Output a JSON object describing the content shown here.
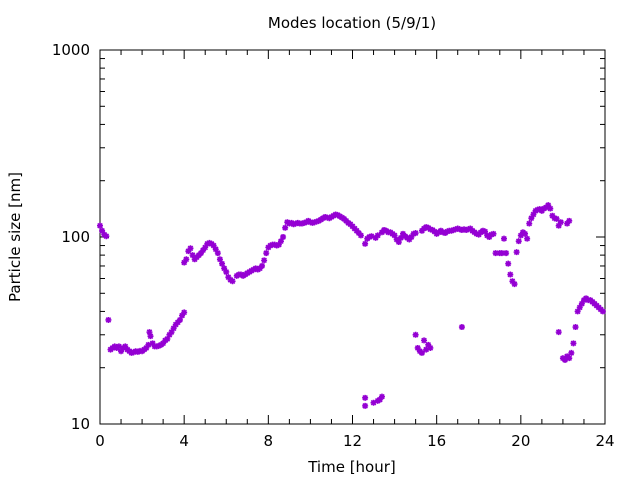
{
  "chart_data": {
    "type": "scatter",
    "title": "Modes location (5/9/1)",
    "xlabel": "Time [hour]",
    "ylabel": "Particle size [nm]",
    "xlim": [
      0,
      24
    ],
    "ylim": [
      10,
      1000
    ],
    "yscale": "log",
    "x_ticks": [
      0,
      4,
      8,
      12,
      16,
      20,
      24
    ],
    "y_ticks": [
      10,
      100,
      1000
    ],
    "marker_color": "#9400d3",
    "grid": false,
    "legend": "none",
    "series": [
      {
        "points": [
          [
            0.0,
            115
          ],
          [
            0.1,
            108
          ],
          [
            0.2,
            103
          ],
          [
            0.3,
            101
          ],
          [
            0.4,
            36
          ],
          [
            0.5,
            25
          ],
          [
            0.6,
            25.5
          ],
          [
            0.7,
            26
          ],
          [
            0.8,
            25.5
          ],
          [
            0.9,
            26
          ],
          [
            1.0,
            24.5
          ],
          [
            1.1,
            25.5
          ],
          [
            1.2,
            26
          ],
          [
            1.3,
            25
          ],
          [
            1.4,
            24.5
          ],
          [
            1.5,
            24
          ],
          [
            1.6,
            24.2
          ],
          [
            1.7,
            24.5
          ],
          [
            1.8,
            24.3
          ],
          [
            1.9,
            24.6
          ],
          [
            2.0,
            24.5
          ],
          [
            2.1,
            25
          ],
          [
            2.2,
            25.5
          ],
          [
            2.3,
            26.5
          ],
          [
            2.35,
            31
          ],
          [
            2.4,
            29.5
          ],
          [
            2.5,
            27
          ],
          [
            2.6,
            26
          ],
          [
            2.7,
            26
          ],
          [
            2.8,
            26.2
          ],
          [
            2.9,
            26.5
          ],
          [
            3.0,
            27
          ],
          [
            3.1,
            28
          ],
          [
            3.2,
            28.5
          ],
          [
            3.3,
            30
          ],
          [
            3.4,
            31
          ],
          [
            3.5,
            32.5
          ],
          [
            3.6,
            34
          ],
          [
            3.7,
            35
          ],
          [
            3.8,
            36
          ],
          [
            3.9,
            38
          ],
          [
            4.0,
            39.5
          ],
          [
            4.0,
            73
          ],
          [
            4.1,
            76
          ],
          [
            4.2,
            84
          ],
          [
            4.3,
            87
          ],
          [
            4.4,
            80
          ],
          [
            4.5,
            76
          ],
          [
            4.6,
            78
          ],
          [
            4.7,
            80
          ],
          [
            4.8,
            82
          ],
          [
            4.9,
            85
          ],
          [
            5.0,
            88
          ],
          [
            5.1,
            92
          ],
          [
            5.2,
            93
          ],
          [
            5.3,
            92
          ],
          [
            5.4,
            90
          ],
          [
            5.5,
            86
          ],
          [
            5.6,
            82
          ],
          [
            5.7,
            76
          ],
          [
            5.8,
            72
          ],
          [
            5.9,
            68
          ],
          [
            6.0,
            65
          ],
          [
            6.1,
            61
          ],
          [
            6.2,
            59
          ],
          [
            6.3,
            58
          ],
          [
            6.5,
            62
          ],
          [
            6.6,
            63
          ],
          [
            6.7,
            63
          ],
          [
            6.8,
            62
          ],
          [
            6.9,
            63
          ],
          [
            7.0,
            64
          ],
          [
            7.1,
            65
          ],
          [
            7.2,
            66
          ],
          [
            7.3,
            67
          ],
          [
            7.4,
            68
          ],
          [
            7.5,
            67
          ],
          [
            7.6,
            68
          ],
          [
            7.7,
            70
          ],
          [
            7.8,
            75
          ],
          [
            7.9,
            82
          ],
          [
            8.0,
            88
          ],
          [
            8.1,
            90
          ],
          [
            8.2,
            91
          ],
          [
            8.3,
            91
          ],
          [
            8.4,
            90
          ],
          [
            8.5,
            91
          ],
          [
            8.6,
            95
          ],
          [
            8.7,
            100
          ],
          [
            8.8,
            112
          ],
          [
            8.9,
            120
          ],
          [
            9.0,
            118
          ],
          [
            9.1,
            119
          ],
          [
            9.2,
            117
          ],
          [
            9.3,
            118
          ],
          [
            9.4,
            119
          ],
          [
            9.5,
            118
          ],
          [
            9.6,
            118
          ],
          [
            9.7,
            119
          ],
          [
            9.8,
            120
          ],
          [
            9.9,
            122
          ],
          [
            10.0,
            120
          ],
          [
            10.1,
            119
          ],
          [
            10.2,
            120
          ],
          [
            10.3,
            121
          ],
          [
            10.4,
            122
          ],
          [
            10.5,
            124
          ],
          [
            10.6,
            126
          ],
          [
            10.7,
            128
          ],
          [
            10.8,
            127
          ],
          [
            10.9,
            126
          ],
          [
            11.0,
            128
          ],
          [
            11.1,
            130
          ],
          [
            11.2,
            132
          ],
          [
            11.3,
            131
          ],
          [
            11.4,
            129
          ],
          [
            11.5,
            127
          ],
          [
            11.6,
            125
          ],
          [
            11.7,
            122
          ],
          [
            11.8,
            119
          ],
          [
            11.9,
            117
          ],
          [
            12.0,
            114
          ],
          [
            12.1,
            111
          ],
          [
            12.2,
            108
          ],
          [
            12.3,
            105
          ],
          [
            12.4,
            102
          ],
          [
            12.6,
            12.5
          ],
          [
            12.6,
            13.8
          ],
          [
            12.6,
            92
          ],
          [
            12.7,
            98
          ],
          [
            12.8,
            100
          ],
          [
            12.9,
            101
          ],
          [
            13.0,
            13
          ],
          [
            13.1,
            99
          ],
          [
            13.2,
            13.3
          ],
          [
            13.2,
            102
          ],
          [
            13.3,
            13.5
          ],
          [
            13.4,
            14
          ],
          [
            13.4,
            106
          ],
          [
            13.5,
            109
          ],
          [
            13.6,
            108
          ],
          [
            13.7,
            106
          ],
          [
            13.8,
            106
          ],
          [
            13.9,
            104
          ],
          [
            14.0,
            102
          ],
          [
            14.1,
            97
          ],
          [
            14.2,
            94
          ],
          [
            14.3,
            99
          ],
          [
            14.4,
            104
          ],
          [
            14.5,
            101
          ],
          [
            14.6,
            99
          ],
          [
            14.7,
            97
          ],
          [
            14.8,
            100
          ],
          [
            14.9,
            104
          ],
          [
            15.0,
            30
          ],
          [
            15.0,
            105
          ],
          [
            15.1,
            25.5
          ],
          [
            15.2,
            24.5
          ],
          [
            15.3,
            24
          ],
          [
            15.4,
            28
          ],
          [
            15.3,
            108
          ],
          [
            15.4,
            111
          ],
          [
            15.5,
            113
          ],
          [
            15.5,
            25
          ],
          [
            15.6,
            26.5
          ],
          [
            15.6,
            112
          ],
          [
            15.7,
            25.5
          ],
          [
            15.7,
            110
          ],
          [
            15.8,
            109
          ],
          [
            15.9,
            107
          ],
          [
            16.0,
            104
          ],
          [
            16.1,
            106
          ],
          [
            16.2,
            108
          ],
          [
            16.3,
            106
          ],
          [
            16.4,
            105
          ],
          [
            16.5,
            107
          ],
          [
            16.6,
            108
          ],
          [
            16.7,
            108
          ],
          [
            16.8,
            109
          ],
          [
            16.9,
            110
          ],
          [
            17.0,
            111
          ],
          [
            17.1,
            110
          ],
          [
            17.2,
            33
          ],
          [
            17.2,
            109
          ],
          [
            17.3,
            110
          ],
          [
            17.4,
            109
          ],
          [
            17.5,
            110
          ],
          [
            17.6,
            111
          ],
          [
            17.7,
            108
          ],
          [
            17.8,
            106
          ],
          [
            17.9,
            104
          ],
          [
            18.0,
            103
          ],
          [
            18.1,
            106
          ],
          [
            18.2,
            108
          ],
          [
            18.3,
            107
          ],
          [
            18.4,
            102
          ],
          [
            18.5,
            100
          ],
          [
            18.6,
            103
          ],
          [
            18.7,
            104
          ],
          [
            18.8,
            82
          ],
          [
            19.0,
            82
          ],
          [
            19.1,
            82
          ],
          [
            19.2,
            98
          ],
          [
            19.3,
            82
          ],
          [
            19.4,
            72
          ],
          [
            19.5,
            63
          ],
          [
            19.6,
            58
          ],
          [
            19.7,
            56
          ],
          [
            19.8,
            83
          ],
          [
            19.9,
            95
          ],
          [
            20.0,
            102
          ],
          [
            20.1,
            106
          ],
          [
            20.2,
            104
          ],
          [
            20.3,
            98
          ],
          [
            20.4,
            118
          ],
          [
            20.5,
            126
          ],
          [
            20.6,
            132
          ],
          [
            20.7,
            138
          ],
          [
            20.8,
            140
          ],
          [
            20.9,
            141
          ],
          [
            21.0,
            138
          ],
          [
            21.1,
            142
          ],
          [
            21.2,
            144
          ],
          [
            21.3,
            148
          ],
          [
            21.4,
            142
          ],
          [
            21.5,
            130
          ],
          [
            21.6,
            126
          ],
          [
            21.7,
            125
          ],
          [
            21.8,
            115
          ],
          [
            21.8,
            31
          ],
          [
            21.9,
            120
          ],
          [
            22.0,
            22.5
          ],
          [
            22.1,
            22
          ],
          [
            22.2,
            23
          ],
          [
            22.2,
            118
          ],
          [
            22.3,
            22.5
          ],
          [
            22.3,
            122
          ],
          [
            22.4,
            24
          ],
          [
            22.5,
            27
          ],
          [
            22.6,
            33
          ],
          [
            22.7,
            40
          ],
          [
            22.8,
            42
          ],
          [
            22.9,
            44
          ],
          [
            23.0,
            46
          ],
          [
            23.1,
            47
          ],
          [
            23.2,
            46
          ],
          [
            23.3,
            46
          ],
          [
            23.4,
            45
          ],
          [
            23.5,
            44
          ],
          [
            23.6,
            43
          ],
          [
            23.7,
            42
          ],
          [
            23.8,
            41
          ],
          [
            23.9,
            40
          ]
        ]
      }
    ]
  }
}
